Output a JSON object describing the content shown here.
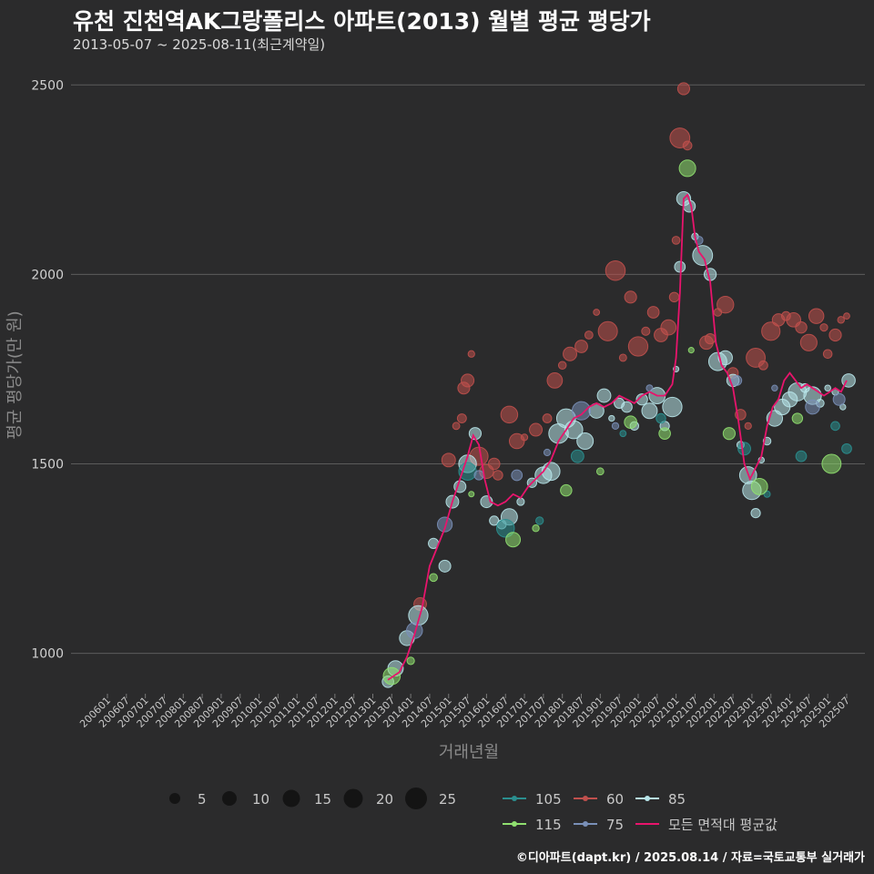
{
  "header": {
    "title": "유천 진천역AK그랑폴리스 아파트(2013) 월별 평균 평당가",
    "subtitle": "2013-05-07 ~ 2025-08-11(최근계약일)"
  },
  "footer": {
    "source": "©디아파트(dapt.kr) / 2025.08.14 / 자료=국토교통부 실거래가"
  },
  "colors": {
    "background": "#2b2b2c",
    "grid": "#5c5c5c",
    "s105": "#2a8f8f",
    "s60": "#c0504d",
    "s85": "#b8e6ea",
    "s115": "#90e070",
    "s75": "#7a90b8",
    "avg": "#e8146c"
  },
  "chart_data": {
    "type": "scatter",
    "title": "유천 진천역AK그랑폴리스 아파트(2013) 월별 평균 평당가",
    "xlabel": "거래년월",
    "ylabel": "평균 평당가(만 원)",
    "xlim": [
      2006.0,
      2025.5
    ],
    "ylim": [
      850,
      2580
    ],
    "yticks": [
      1000,
      1500,
      2000,
      2500
    ],
    "ytick_labels": [
      "1000",
      "1500",
      "2000",
      "2500"
    ],
    "xtick_labels": [
      "200601",
      "200607",
      "200701",
      "200707",
      "200801",
      "200807",
      "200901",
      "200907",
      "201001",
      "201007",
      "201101",
      "201107",
      "201201",
      "201207",
      "201301",
      "201307",
      "201401",
      "201407",
      "201501",
      "201507",
      "201601",
      "201607",
      "201701",
      "201707",
      "201801",
      "201807",
      "201901",
      "201907",
      "202001",
      "202007",
      "202101",
      "202107",
      "202201",
      "202207",
      "202301",
      "202307",
      "202401",
      "202407",
      "202501",
      "202507"
    ],
    "size_legend": {
      "values": [
        5,
        10,
        15,
        20,
        25
      ],
      "labels": [
        "5",
        "10",
        "15",
        "20",
        "25"
      ]
    },
    "series": [
      {
        "name": "60",
        "color_key": "s60",
        "points": [
          [
            2014.25,
            1130
          ],
          [
            2015.0,
            1510
          ],
          [
            2015.2,
            1600
          ],
          [
            2015.35,
            1620
          ],
          [
            2015.4,
            1700
          ],
          [
            2015.5,
            1720
          ],
          [
            2015.6,
            1790
          ],
          [
            2015.8,
            1520
          ],
          [
            2016.0,
            1480
          ],
          [
            2016.2,
            1500
          ],
          [
            2016.3,
            1470
          ],
          [
            2016.6,
            1630
          ],
          [
            2016.8,
            1560
          ],
          [
            2017.0,
            1570
          ],
          [
            2017.3,
            1590
          ],
          [
            2017.6,
            1620
          ],
          [
            2017.8,
            1720
          ],
          [
            2018.0,
            1760
          ],
          [
            2018.2,
            1790
          ],
          [
            2018.5,
            1810
          ],
          [
            2018.7,
            1840
          ],
          [
            2018.9,
            1900
          ],
          [
            2019.2,
            1850
          ],
          [
            2019.4,
            2010
          ],
          [
            2019.6,
            1780
          ],
          [
            2019.8,
            1940
          ],
          [
            2020.0,
            1810
          ],
          [
            2020.2,
            1850
          ],
          [
            2020.4,
            1900
          ],
          [
            2020.6,
            1840
          ],
          [
            2020.8,
            1860
          ],
          [
            2020.95,
            1940
          ],
          [
            2021.0,
            2090
          ],
          [
            2021.1,
            2360
          ],
          [
            2021.2,
            2490
          ],
          [
            2021.3,
            2340
          ],
          [
            2021.8,
            1820
          ],
          [
            2021.9,
            1830
          ],
          [
            2022.1,
            1900
          ],
          [
            2022.3,
            1920
          ],
          [
            2022.5,
            1740
          ],
          [
            2022.7,
            1630
          ],
          [
            2022.9,
            1600
          ],
          [
            2023.1,
            1780
          ],
          [
            2023.3,
            1760
          ],
          [
            2023.5,
            1850
          ],
          [
            2023.7,
            1880
          ],
          [
            2023.9,
            1890
          ],
          [
            2024.1,
            1880
          ],
          [
            2024.3,
            1860
          ],
          [
            2024.5,
            1820
          ],
          [
            2024.7,
            1890
          ],
          [
            2024.9,
            1860
          ],
          [
            2025.0,
            1790
          ],
          [
            2025.2,
            1840
          ],
          [
            2025.35,
            1880
          ],
          [
            2025.5,
            1890
          ]
        ]
      },
      {
        "name": "85",
        "color_key": "s85",
        "points": [
          [
            2013.4,
            925
          ],
          [
            2013.6,
            960
          ],
          [
            2013.9,
            1040
          ],
          [
            2014.2,
            1100
          ],
          [
            2014.6,
            1290
          ],
          [
            2014.9,
            1230
          ],
          [
            2015.1,
            1400
          ],
          [
            2015.3,
            1440
          ],
          [
            2015.5,
            1500
          ],
          [
            2015.7,
            1580
          ],
          [
            2016.0,
            1400
          ],
          [
            2016.2,
            1350
          ],
          [
            2016.4,
            1340
          ],
          [
            2016.6,
            1360
          ],
          [
            2016.9,
            1400
          ],
          [
            2017.2,
            1450
          ],
          [
            2017.5,
            1470
          ],
          [
            2017.7,
            1480
          ],
          [
            2017.9,
            1580
          ],
          [
            2018.1,
            1620
          ],
          [
            2018.3,
            1590
          ],
          [
            2018.6,
            1560
          ],
          [
            2018.9,
            1640
          ],
          [
            2019.1,
            1680
          ],
          [
            2019.3,
            1620
          ],
          [
            2019.5,
            1660
          ],
          [
            2019.7,
            1650
          ],
          [
            2019.9,
            1600
          ],
          [
            2020.1,
            1670
          ],
          [
            2020.3,
            1640
          ],
          [
            2020.5,
            1680
          ],
          [
            2020.7,
            1600
          ],
          [
            2020.9,
            1650
          ],
          [
            2021.0,
            1750
          ],
          [
            2021.1,
            2020
          ],
          [
            2021.2,
            2200
          ],
          [
            2021.35,
            2180
          ],
          [
            2021.5,
            2100
          ],
          [
            2021.7,
            2050
          ],
          [
            2021.9,
            2000
          ],
          [
            2022.1,
            1770
          ],
          [
            2022.3,
            1780
          ],
          [
            2022.5,
            1720
          ],
          [
            2022.7,
            1550
          ],
          [
            2022.9,
            1470
          ],
          [
            2023.0,
            1430
          ],
          [
            2023.1,
            1370
          ],
          [
            2023.25,
            1510
          ],
          [
            2023.4,
            1560
          ],
          [
            2023.6,
            1620
          ],
          [
            2023.8,
            1650
          ],
          [
            2024.0,
            1670
          ],
          [
            2024.2,
            1690
          ],
          [
            2024.4,
            1700
          ],
          [
            2024.6,
            1680
          ],
          [
            2024.8,
            1660
          ],
          [
            2025.0,
            1700
          ],
          [
            2025.2,
            1690
          ],
          [
            2025.4,
            1650
          ],
          [
            2025.55,
            1720
          ]
        ]
      },
      {
        "name": "105",
        "color_key": "s105",
        "points": [
          [
            2015.5,
            1480
          ],
          [
            2016.5,
            1330
          ],
          [
            2017.4,
            1350
          ],
          [
            2018.4,
            1520
          ],
          [
            2019.6,
            1580
          ],
          [
            2020.6,
            1620
          ],
          [
            2022.8,
            1540
          ],
          [
            2023.4,
            1420
          ],
          [
            2024.3,
            1520
          ],
          [
            2025.2,
            1600
          ],
          [
            2025.5,
            1540
          ]
        ]
      },
      {
        "name": "115",
        "color_key": "s115",
        "points": [
          [
            2013.5,
            940
          ],
          [
            2014.0,
            980
          ],
          [
            2014.6,
            1200
          ],
          [
            2015.6,
            1420
          ],
          [
            2016.7,
            1300
          ],
          [
            2017.3,
            1330
          ],
          [
            2018.1,
            1430
          ],
          [
            2019.0,
            1480
          ],
          [
            2019.8,
            1610
          ],
          [
            2020.7,
            1580
          ],
          [
            2021.4,
            1800
          ],
          [
            2021.3,
            2280
          ],
          [
            2022.4,
            1580
          ],
          [
            2023.2,
            1440
          ],
          [
            2024.2,
            1620
          ],
          [
            2025.1,
            1500
          ]
        ]
      },
      {
        "name": "75",
        "color_key": "s75",
        "points": [
          [
            2014.1,
            1060
          ],
          [
            2014.9,
            1340
          ],
          [
            2015.8,
            1470
          ],
          [
            2016.8,
            1470
          ],
          [
            2017.6,
            1530
          ],
          [
            2018.5,
            1640
          ],
          [
            2019.4,
            1600
          ],
          [
            2020.3,
            1700
          ],
          [
            2021.6,
            2090
          ],
          [
            2022.6,
            1720
          ],
          [
            2023.6,
            1700
          ],
          [
            2024.6,
            1650
          ],
          [
            2025.3,
            1670
          ]
        ]
      }
    ],
    "average_line": {
      "name": "모든 면적대 평균값",
      "color_key": "avg",
      "points": [
        [
          2013.4,
          930
        ],
        [
          2013.7,
          950
        ],
        [
          2013.9,
          990
        ],
        [
          2014.1,
          1050
        ],
        [
          2014.3,
          1120
        ],
        [
          2014.5,
          1230
        ],
        [
          2014.7,
          1280
        ],
        [
          2014.9,
          1330
        ],
        [
          2015.1,
          1400
        ],
        [
          2015.3,
          1460
        ],
        [
          2015.5,
          1520
        ],
        [
          2015.65,
          1575
        ],
        [
          2015.8,
          1550
        ],
        [
          2015.95,
          1460
        ],
        [
          2016.1,
          1400
        ],
        [
          2016.3,
          1390
        ],
        [
          2016.5,
          1400
        ],
        [
          2016.7,
          1420
        ],
        [
          2016.9,
          1410
        ],
        [
          2017.1,
          1440
        ],
        [
          2017.3,
          1460
        ],
        [
          2017.5,
          1480
        ],
        [
          2017.7,
          1510
        ],
        [
          2017.9,
          1560
        ],
        [
          2018.1,
          1590
        ],
        [
          2018.3,
          1620
        ],
        [
          2018.5,
          1630
        ],
        [
          2018.7,
          1650
        ],
        [
          2018.9,
          1660
        ],
        [
          2019.1,
          1650
        ],
        [
          2019.3,
          1660
        ],
        [
          2019.5,
          1680
        ],
        [
          2019.7,
          1670
        ],
        [
          2019.9,
          1660
        ],
        [
          2020.1,
          1680
        ],
        [
          2020.3,
          1690
        ],
        [
          2020.5,
          1680
        ],
        [
          2020.7,
          1680
        ],
        [
          2020.9,
          1710
        ],
        [
          2021.0,
          1780
        ],
        [
          2021.1,
          1950
        ],
        [
          2021.2,
          2200
        ],
        [
          2021.3,
          2210
        ],
        [
          2021.4,
          2180
        ],
        [
          2021.5,
          2100
        ],
        [
          2021.6,
          2060
        ],
        [
          2021.75,
          2040
        ],
        [
          2021.9,
          1980
        ],
        [
          2022.05,
          1820
        ],
        [
          2022.2,
          1760
        ],
        [
          2022.35,
          1740
        ],
        [
          2022.5,
          1700
        ],
        [
          2022.65,
          1610
        ],
        [
          2022.8,
          1500
        ],
        [
          2022.95,
          1460
        ],
        [
          2023.1,
          1490
        ],
        [
          2023.25,
          1520
        ],
        [
          2023.4,
          1600
        ],
        [
          2023.55,
          1650
        ],
        [
          2023.7,
          1670
        ],
        [
          2023.85,
          1720
        ],
        [
          2024.0,
          1740
        ],
        [
          2024.15,
          1720
        ],
        [
          2024.3,
          1700
        ],
        [
          2024.45,
          1710
        ],
        [
          2024.6,
          1700
        ],
        [
          2024.75,
          1690
        ],
        [
          2024.9,
          1680
        ],
        [
          2025.05,
          1690
        ],
        [
          2025.2,
          1700
        ],
        [
          2025.35,
          1690
        ],
        [
          2025.5,
          1720
        ]
      ]
    }
  }
}
